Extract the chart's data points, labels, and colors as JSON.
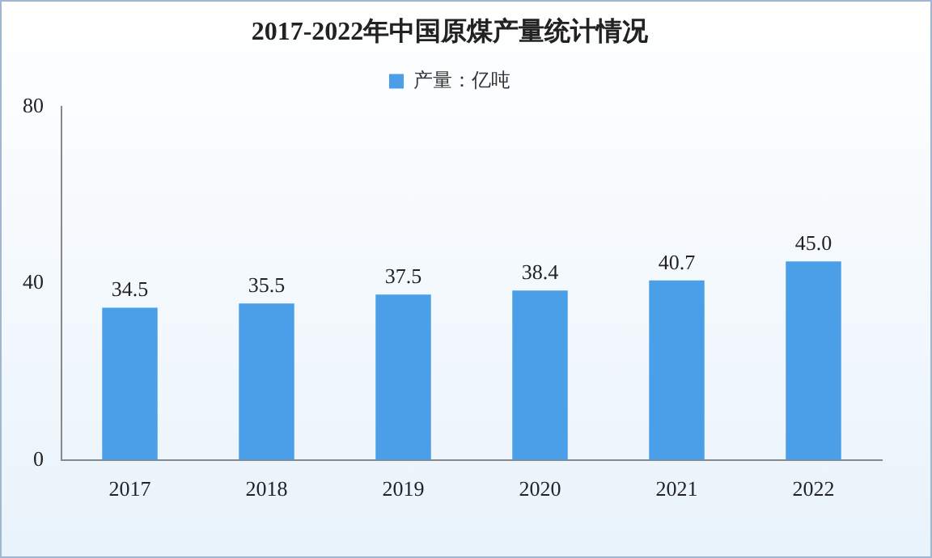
{
  "chart_data": {
    "type": "bar",
    "title": "2017-2022年中国原煤产量统计情况",
    "categories": [
      "2017",
      "2018",
      "2019",
      "2020",
      "2021",
      "2022"
    ],
    "series": [
      {
        "name": "产量：亿吨",
        "color": "#4a9fe8",
        "values": [
          34.5,
          35.5,
          37.5,
          38.4,
          40.7,
          45.0
        ]
      }
    ],
    "value_labels": [
      "34.5",
      "35.5",
      "37.5",
      "38.4",
      "40.7",
      "45.0"
    ],
    "ylim": [
      0,
      80
    ],
    "yticks": [
      0,
      40,
      80
    ],
    "grid": false,
    "legend": "top"
  }
}
